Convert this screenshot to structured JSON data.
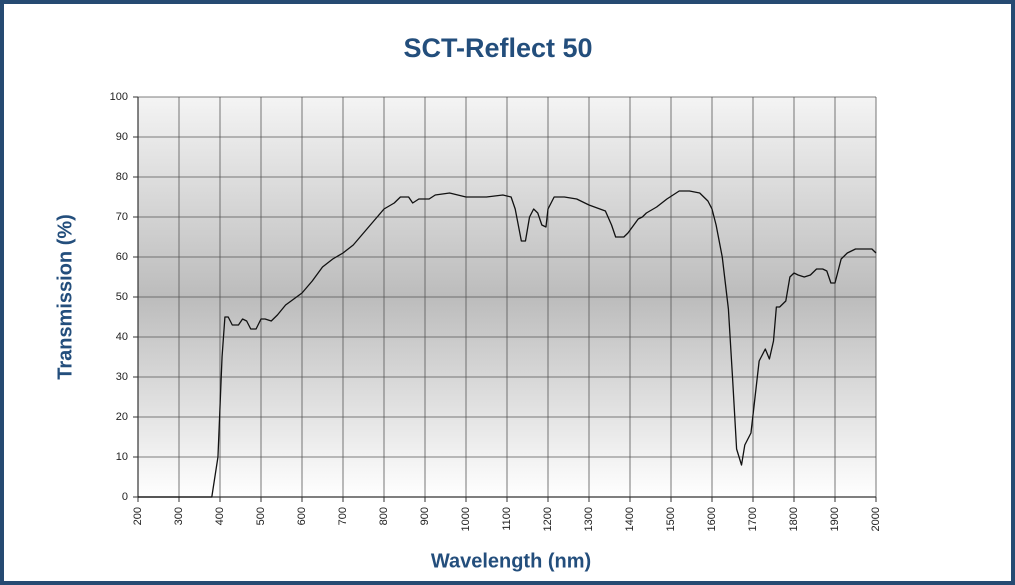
{
  "chart_data": {
    "type": "line",
    "title": "SCT-Reflect 50",
    "xlabel": "Wavelength (nm)",
    "ylabel": "Transmission (%)",
    "x": [
      200,
      380,
      395,
      405,
      412,
      420,
      430,
      445,
      455,
      465,
      475,
      488,
      500,
      510,
      525,
      540,
      560,
      580,
      600,
      625,
      650,
      675,
      700,
      725,
      750,
      775,
      800,
      825,
      840,
      860,
      870,
      885,
      910,
      925,
      960,
      1000,
      1050,
      1090,
      1110,
      1120,
      1135,
      1145,
      1155,
      1165,
      1175,
      1185,
      1195,
      1200,
      1215,
      1240,
      1270,
      1300,
      1340,
      1355,
      1365,
      1385,
      1395,
      1420,
      1430,
      1440,
      1465,
      1490,
      1520,
      1545,
      1570,
      1590,
      1600,
      1610,
      1625,
      1640,
      1650,
      1660,
      1672,
      1680,
      1695,
      1705,
      1715,
      1730,
      1740,
      1750,
      1757,
      1765,
      1780,
      1790,
      1800,
      1810,
      1825,
      1840,
      1855,
      1870,
      1880,
      1890,
      1900,
      1915,
      1930,
      1950,
      1975,
      1990,
      2000
    ],
    "series": [
      {
        "color": "#111111",
        "values": [
          0,
          0,
          10,
          35,
          45,
          45,
          43,
          43,
          44.5,
          44,
          42,
          42,
          44.5,
          44.5,
          44,
          45.5,
          48,
          49.5,
          51,
          54,
          57.5,
          59.5,
          61,
          63,
          66,
          69,
          72,
          73.5,
          75,
          75,
          73.5,
          74.5,
          74.5,
          75.5,
          76,
          75,
          75,
          75.5,
          75,
          72,
          64,
          64,
          70,
          72,
          71,
          68,
          67.5,
          72,
          75,
          75,
          74.5,
          73,
          71.5,
          68,
          65,
          65,
          66,
          69.5,
          70,
          71,
          72.5,
          74.5,
          76.5,
          76.5,
          76,
          74,
          72,
          68,
          60,
          47,
          30,
          12,
          8,
          13,
          16,
          25,
          34,
          37,
          34.5,
          39,
          47.5,
          47.5,
          49,
          55,
          56,
          55.5,
          55,
          55.5,
          57,
          57,
          56.5,
          53.5,
          53.5,
          59.5,
          61,
          62,
          62,
          62,
          61
        ]
      }
    ],
    "xlim": [
      200,
      2000
    ],
    "ylim": [
      0,
      100
    ],
    "xticks": [
      200,
      300,
      400,
      500,
      600,
      700,
      800,
      900,
      1000,
      1100,
      1200,
      1300,
      1400,
      1500,
      1600,
      1700,
      1800,
      1900,
      2000
    ],
    "yticks": [
      0,
      10,
      20,
      30,
      40,
      50,
      60,
      70,
      80,
      90,
      100
    ],
    "grid": true
  }
}
